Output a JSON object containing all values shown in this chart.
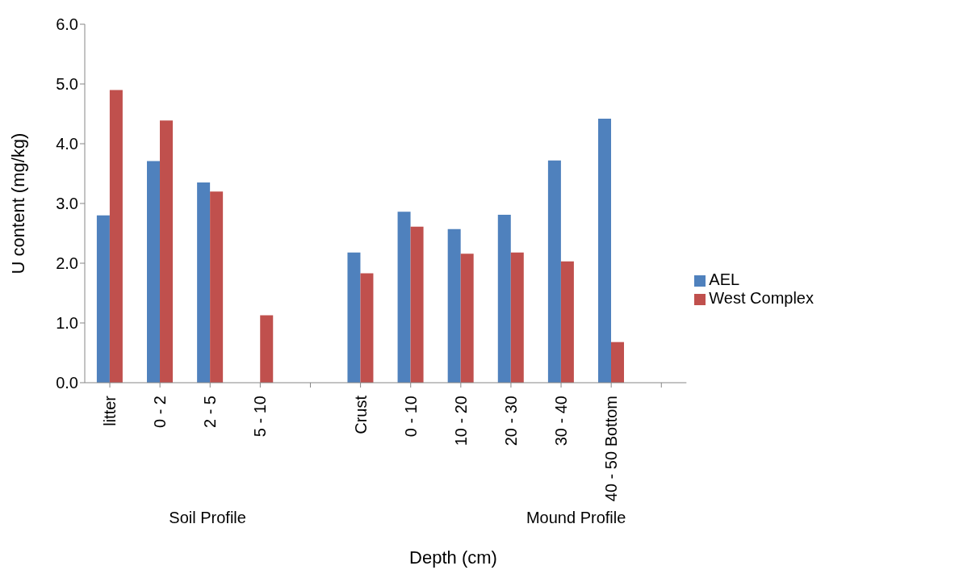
{
  "chart_data": {
    "type": "bar",
    "xlabel": "Depth (cm)",
    "ylabel": "U content (mg/kg)",
    "categories": [
      "litter",
      "0 - 2",
      "2 - 5",
      "5 - 10",
      null,
      "Crust",
      "0 - 10",
      "10 - 20",
      "20 - 30",
      "30 - 40",
      "40 - 50 Bottom",
      null
    ],
    "series": [
      {
        "name": "AEL",
        "color": "#4f81bd",
        "values": [
          2.8,
          3.71,
          3.35,
          null,
          null,
          2.18,
          2.86,
          2.57,
          2.81,
          3.72,
          4.42,
          null
        ]
      },
      {
        "name": "West Complex",
        "color": "#c0504d",
        "values": [
          4.9,
          4.39,
          3.2,
          1.13,
          null,
          1.83,
          2.61,
          2.16,
          2.18,
          2.03,
          0.68,
          null
        ]
      }
    ],
    "ylim": [
      0,
      6
    ],
    "yticks": [
      {
        "value": 0,
        "label": "0.0"
      },
      {
        "value": 1,
        "label": "1.0"
      },
      {
        "value": 2,
        "label": "2.0"
      },
      {
        "value": 3,
        "label": "3.0"
      },
      {
        "value": 4,
        "label": "4.0"
      },
      {
        "value": 5,
        "label": "5.0"
      },
      {
        "value": 6,
        "label": "6.0"
      }
    ],
    "annotations": [
      "Soil Profile",
      "Mound Profile"
    ],
    "grid": false,
    "legend": "right"
  }
}
